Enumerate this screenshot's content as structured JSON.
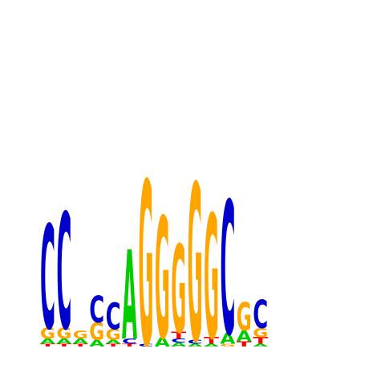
{
  "chart_data": {
    "type": "sequence-logo",
    "title": "",
    "xlabel": "",
    "ylabel": "",
    "ylim": [
      0,
      2
    ],
    "grid": false,
    "legend": "none",
    "alphabet": [
      "A",
      "C",
      "G",
      "T"
    ],
    "colors": {
      "A": "#00cc00",
      "C": "#0000cc",
      "G": "#ffa500",
      "T": "#ff0000"
    },
    "positions": [
      {
        "position": 1,
        "letters": [
          {
            "base": "T",
            "bits": 0.02
          },
          {
            "base": "A",
            "bits": 0.04
          },
          {
            "base": "G",
            "bits": 0.08
          },
          {
            "base": "C",
            "bits": 0.78
          }
        ]
      },
      {
        "position": 2,
        "letters": [
          {
            "base": "T",
            "bits": 0.02
          },
          {
            "base": "A",
            "bits": 0.04
          },
          {
            "base": "G",
            "bits": 0.08
          },
          {
            "base": "C",
            "bits": 0.87
          }
        ]
      },
      {
        "position": 3,
        "letters": [
          {
            "base": "T",
            "bits": 0.02
          },
          {
            "base": "A",
            "bits": 0.04
          },
          {
            "base": "G",
            "bits": 0.06
          }
        ]
      },
      {
        "position": 4,
        "letters": [
          {
            "base": "A",
            "bits": 0.05
          },
          {
            "base": "G",
            "bits": 0.13
          },
          {
            "base": "C",
            "bits": 0.2
          }
        ]
      },
      {
        "position": 5,
        "letters": [
          {
            "base": "T",
            "bits": 0.02
          },
          {
            "base": "A",
            "bits": 0.03
          },
          {
            "base": "G",
            "bits": 0.08
          },
          {
            "base": "C",
            "bits": 0.2
          }
        ]
      },
      {
        "position": 6,
        "letters": [
          {
            "base": "T",
            "bits": 0.02
          },
          {
            "base": "C",
            "bits": 0.04
          },
          {
            "base": "A",
            "bits": 0.67
          }
        ]
      },
      {
        "position": 7,
        "letters": [
          {
            "base": "C",
            "bits": 0.02
          },
          {
            "base": "G",
            "bits": 1.23
          }
        ]
      },
      {
        "position": 8,
        "letters": [
          {
            "base": "A",
            "bits": 0.07
          },
          {
            "base": "G",
            "bits": 0.91
          }
        ]
      },
      {
        "position": 9,
        "letters": [
          {
            "base": "A",
            "bits": 0.03
          },
          {
            "base": "C",
            "bits": 0.03
          },
          {
            "base": "T",
            "bits": 0.05
          },
          {
            "base": "G",
            "bits": 0.66
          }
        ]
      },
      {
        "position": 10,
        "letters": [
          {
            "base": "A",
            "bits": 0.02
          },
          {
            "base": "C",
            "bits": 0.03
          },
          {
            "base": "G",
            "bits": 1.18
          }
        ]
      },
      {
        "position": 11,
        "letters": [
          {
            "base": "A",
            "bits": 0.02
          },
          {
            "base": "T",
            "bits": 0.05
          },
          {
            "base": "G",
            "bits": 0.93
          }
        ]
      },
      {
        "position": 12,
        "letters": [
          {
            "base": "G",
            "bits": 0.02
          },
          {
            "base": "A",
            "bits": 0.08
          },
          {
            "base": "C",
            "bits": 1.0
          }
        ]
      },
      {
        "position": 13,
        "letters": [
          {
            "base": "T",
            "bits": 0.04
          },
          {
            "base": "A",
            "bits": 0.08
          },
          {
            "base": "G",
            "bits": 0.21
          }
        ]
      },
      {
        "position": 14,
        "letters": [
          {
            "base": "A",
            "bits": 0.02
          },
          {
            "base": "T",
            "bits": 0.05
          },
          {
            "base": "G",
            "bits": 0.07
          },
          {
            "base": "C",
            "bits": 0.21
          }
        ]
      }
    ]
  }
}
